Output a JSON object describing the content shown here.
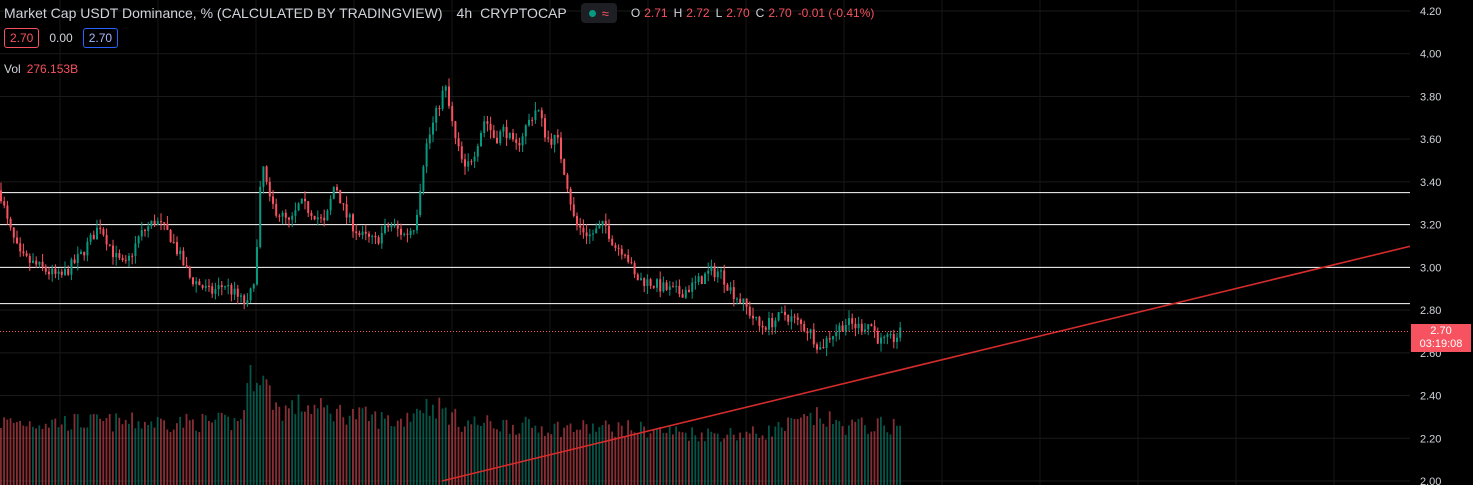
{
  "header": {
    "title": "Market Cap USDT Dominance, % (CALCULATED BY TRADINGVIEW)",
    "timeframe": "4h",
    "exchange": "CRYPTOCAP",
    "ohlc": {
      "o_label": "O",
      "o": "2.71",
      "h_label": "H",
      "h": "2.72",
      "l_label": "L",
      "l": "2.70",
      "c_label": "C",
      "c": "2.70",
      "change": "-0.01 (-0.41%)"
    }
  },
  "quote": {
    "bid": "2.70",
    "spread": "0.00",
    "ask": "2.70"
  },
  "volume": {
    "label": "Vol",
    "value": "276.153B"
  },
  "price_label": {
    "price": "2.70",
    "countdown": "03:19:08"
  },
  "colors": {
    "up": "#089981",
    "down": "#f7525f",
    "trendline": "#d42c2c",
    "hline": "#ffffff"
  },
  "chart_data": {
    "type": "candlestick",
    "ylim": [
      2.0,
      4.2
    ],
    "yticks": [
      "4.20",
      "4.00",
      "3.80",
      "3.60",
      "3.40",
      "3.20",
      "3.00",
      "2.80",
      "2.60",
      "2.40",
      "2.20",
      "2.00"
    ],
    "horizontal_lines": [
      3.35,
      3.2,
      3.0,
      2.83
    ],
    "current_price": 2.7,
    "trendline": [
      [
        0.3,
        2.0
      ],
      [
        1.0,
        3.17
      ]
    ],
    "price_path": [
      [
        0,
        3.36
      ],
      [
        8,
        3.2
      ],
      [
        20,
        3.05
      ],
      [
        40,
        3.0
      ],
      [
        60,
        2.95
      ],
      [
        80,
        3.05
      ],
      [
        100,
        3.2
      ],
      [
        115,
        3.05
      ],
      [
        125,
        3.0
      ],
      [
        140,
        3.15
      ],
      [
        155,
        3.22
      ],
      [
        170,
        3.15
      ],
      [
        180,
        3.05
      ],
      [
        190,
        2.95
      ],
      [
        200,
        2.92
      ],
      [
        210,
        2.88
      ],
      [
        225,
        2.92
      ],
      [
        240,
        2.85
      ],
      [
        248,
        2.82
      ],
      [
        256,
        3.0
      ],
      [
        262,
        3.5
      ],
      [
        270,
        3.3
      ],
      [
        280,
        3.25
      ],
      [
        290,
        3.2
      ],
      [
        300,
        3.3
      ],
      [
        315,
        3.25
      ],
      [
        325,
        3.2
      ],
      [
        335,
        3.4
      ],
      [
        345,
        3.25
      ],
      [
        360,
        3.15
      ],
      [
        375,
        3.12
      ],
      [
        390,
        3.2
      ],
      [
        405,
        3.15
      ],
      [
        415,
        3.2
      ],
      [
        425,
        3.55
      ],
      [
        435,
        3.7
      ],
      [
        445,
        3.85
      ],
      [
        455,
        3.6
      ],
      [
        465,
        3.45
      ],
      [
        475,
        3.55
      ],
      [
        485,
        3.7
      ],
      [
        495,
        3.6
      ],
      [
        505,
        3.65
      ],
      [
        515,
        3.55
      ],
      [
        525,
        3.65
      ],
      [
        537,
        3.75
      ],
      [
        547,
        3.6
      ],
      [
        557,
        3.6
      ],
      [
        567,
        3.4
      ],
      [
        575,
        3.2
      ],
      [
        590,
        3.15
      ],
      [
        605,
        3.2
      ],
      [
        615,
        3.1
      ],
      [
        625,
        3.08
      ],
      [
        635,
        2.95
      ],
      [
        650,
        2.93
      ],
      [
        665,
        2.9
      ],
      [
        680,
        2.88
      ],
      [
        695,
        2.92
      ],
      [
        710,
        2.98
      ],
      [
        720,
        2.98
      ],
      [
        730,
        2.9
      ],
      [
        745,
        2.82
      ],
      [
        760,
        2.72
      ],
      [
        770,
        2.74
      ],
      [
        785,
        2.78
      ],
      [
        795,
        2.75
      ],
      [
        810,
        2.7
      ],
      [
        820,
        2.62
      ],
      [
        830,
        2.68
      ],
      [
        845,
        2.74
      ],
      [
        860,
        2.72
      ],
      [
        870,
        2.74
      ],
      [
        880,
        2.65
      ],
      [
        892,
        2.66
      ],
      [
        903,
        2.7
      ]
    ],
    "volume_path": [
      [
        0,
        0.55
      ],
      [
        100,
        0.55
      ],
      [
        240,
        0.55
      ],
      [
        250,
        0.95
      ],
      [
        260,
        1.0
      ],
      [
        270,
        0.8
      ],
      [
        280,
        0.65
      ],
      [
        300,
        0.7
      ],
      [
        330,
        0.65
      ],
      [
        400,
        0.55
      ],
      [
        420,
        0.7
      ],
      [
        440,
        0.68
      ],
      [
        460,
        0.55
      ],
      [
        560,
        0.5
      ],
      [
        620,
        0.5
      ],
      [
        700,
        0.45
      ],
      [
        760,
        0.45
      ],
      [
        820,
        0.6
      ],
      [
        840,
        0.52
      ],
      [
        903,
        0.52
      ]
    ]
  }
}
